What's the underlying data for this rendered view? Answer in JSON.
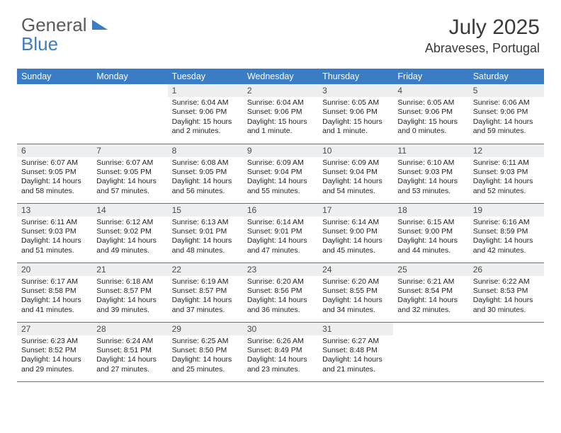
{
  "logo": {
    "word1": "General",
    "word2": "Blue"
  },
  "title": "July 2025",
  "location": "Abraveses, Portugal",
  "colors": {
    "brand_blue": "#3b7dc4",
    "header_text": "#3a3a3a",
    "daynum_bg": "#eceef0",
    "body_text": "#222222",
    "logo_gray": "#5a5a5a"
  },
  "day_headers": [
    "Sunday",
    "Monday",
    "Tuesday",
    "Wednesday",
    "Thursday",
    "Friday",
    "Saturday"
  ],
  "weeks": [
    [
      null,
      null,
      {
        "n": "1",
        "sr": "6:04 AM",
        "ss": "9:06 PM",
        "dl": "15 hours and 2 minutes."
      },
      {
        "n": "2",
        "sr": "6:04 AM",
        "ss": "9:06 PM",
        "dl": "15 hours and 1 minute."
      },
      {
        "n": "3",
        "sr": "6:05 AM",
        "ss": "9:06 PM",
        "dl": "15 hours and 1 minute."
      },
      {
        "n": "4",
        "sr": "6:05 AM",
        "ss": "9:06 PM",
        "dl": "15 hours and 0 minutes."
      },
      {
        "n": "5",
        "sr": "6:06 AM",
        "ss": "9:06 PM",
        "dl": "14 hours and 59 minutes."
      }
    ],
    [
      {
        "n": "6",
        "sr": "6:07 AM",
        "ss": "9:05 PM",
        "dl": "14 hours and 58 minutes."
      },
      {
        "n": "7",
        "sr": "6:07 AM",
        "ss": "9:05 PM",
        "dl": "14 hours and 57 minutes."
      },
      {
        "n": "8",
        "sr": "6:08 AM",
        "ss": "9:05 PM",
        "dl": "14 hours and 56 minutes."
      },
      {
        "n": "9",
        "sr": "6:09 AM",
        "ss": "9:04 PM",
        "dl": "14 hours and 55 minutes."
      },
      {
        "n": "10",
        "sr": "6:09 AM",
        "ss": "9:04 PM",
        "dl": "14 hours and 54 minutes."
      },
      {
        "n": "11",
        "sr": "6:10 AM",
        "ss": "9:03 PM",
        "dl": "14 hours and 53 minutes."
      },
      {
        "n": "12",
        "sr": "6:11 AM",
        "ss": "9:03 PM",
        "dl": "14 hours and 52 minutes."
      }
    ],
    [
      {
        "n": "13",
        "sr": "6:11 AM",
        "ss": "9:03 PM",
        "dl": "14 hours and 51 minutes."
      },
      {
        "n": "14",
        "sr": "6:12 AM",
        "ss": "9:02 PM",
        "dl": "14 hours and 49 minutes."
      },
      {
        "n": "15",
        "sr": "6:13 AM",
        "ss": "9:01 PM",
        "dl": "14 hours and 48 minutes."
      },
      {
        "n": "16",
        "sr": "6:14 AM",
        "ss": "9:01 PM",
        "dl": "14 hours and 47 minutes."
      },
      {
        "n": "17",
        "sr": "6:14 AM",
        "ss": "9:00 PM",
        "dl": "14 hours and 45 minutes."
      },
      {
        "n": "18",
        "sr": "6:15 AM",
        "ss": "9:00 PM",
        "dl": "14 hours and 44 minutes."
      },
      {
        "n": "19",
        "sr": "6:16 AM",
        "ss": "8:59 PM",
        "dl": "14 hours and 42 minutes."
      }
    ],
    [
      {
        "n": "20",
        "sr": "6:17 AM",
        "ss": "8:58 PM",
        "dl": "14 hours and 41 minutes."
      },
      {
        "n": "21",
        "sr": "6:18 AM",
        "ss": "8:57 PM",
        "dl": "14 hours and 39 minutes."
      },
      {
        "n": "22",
        "sr": "6:19 AM",
        "ss": "8:57 PM",
        "dl": "14 hours and 37 minutes."
      },
      {
        "n": "23",
        "sr": "6:20 AM",
        "ss": "8:56 PM",
        "dl": "14 hours and 36 minutes."
      },
      {
        "n": "24",
        "sr": "6:20 AM",
        "ss": "8:55 PM",
        "dl": "14 hours and 34 minutes."
      },
      {
        "n": "25",
        "sr": "6:21 AM",
        "ss": "8:54 PM",
        "dl": "14 hours and 32 minutes."
      },
      {
        "n": "26",
        "sr": "6:22 AM",
        "ss": "8:53 PM",
        "dl": "14 hours and 30 minutes."
      }
    ],
    [
      {
        "n": "27",
        "sr": "6:23 AM",
        "ss": "8:52 PM",
        "dl": "14 hours and 29 minutes."
      },
      {
        "n": "28",
        "sr": "6:24 AM",
        "ss": "8:51 PM",
        "dl": "14 hours and 27 minutes."
      },
      {
        "n": "29",
        "sr": "6:25 AM",
        "ss": "8:50 PM",
        "dl": "14 hours and 25 minutes."
      },
      {
        "n": "30",
        "sr": "6:26 AM",
        "ss": "8:49 PM",
        "dl": "14 hours and 23 minutes."
      },
      {
        "n": "31",
        "sr": "6:27 AM",
        "ss": "8:48 PM",
        "dl": "14 hours and 21 minutes."
      },
      null,
      null
    ]
  ],
  "labels": {
    "sunrise": "Sunrise:",
    "sunset": "Sunset:",
    "daylight": "Daylight:"
  }
}
